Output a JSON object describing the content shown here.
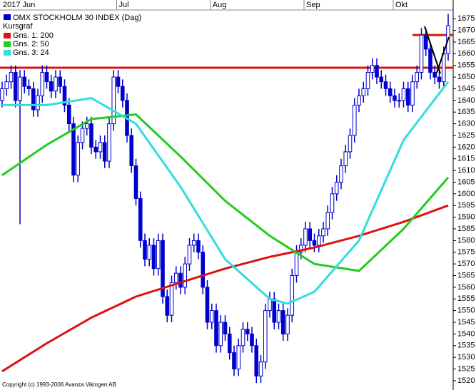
{
  "chart_data": {
    "type": "candlestick",
    "title": "OMX STOCKHOLM 30 INDEX (Dag)",
    "subtitle": "Kursgraf",
    "source": "Copyright (c) 1993-2006 Avanza Vikingen AB",
    "color": "#0000cc",
    "categories": [
      "2017 Jun",
      null,
      null,
      null,
      null,
      null,
      null,
      null,
      null,
      null,
      null,
      null,
      null,
      null,
      null,
      null,
      null,
      null,
      null,
      null,
      null,
      null,
      null,
      null,
      null,
      null,
      "Jul",
      null,
      null,
      null,
      null,
      null,
      null,
      null,
      null,
      null,
      null,
      null,
      null,
      null,
      null,
      null,
      null,
      null,
      null,
      null,
      null,
      "Aug",
      null,
      null,
      null,
      null,
      null,
      null,
      null,
      null,
      null,
      null,
      null,
      null,
      null,
      null,
      null,
      null,
      null,
      null,
      null,
      null,
      "Sep",
      null,
      null,
      null,
      null,
      null,
      null,
      null,
      null,
      null,
      null,
      null,
      null,
      null,
      null,
      null,
      null,
      null,
      null,
      null,
      "Okt",
      null,
      null,
      null,
      null,
      null,
      null,
      null,
      null,
      null,
      null,
      null,
      null
    ],
    "open": [
      1640,
      1645,
      1648,
      1652,
      1640,
      1650,
      1646,
      1645,
      1636,
      1642,
      1652,
      1648,
      1644,
      1650,
      1646,
      1638,
      1630,
      1608,
      1622,
      1628,
      1630,
      1620,
      1618,
      1622,
      1614,
      1630,
      1650,
      1646,
      1640,
      1625,
      1612,
      1598,
      1580,
      1572,
      1578,
      1568,
      1580,
      1556,
      1548,
      1562,
      1566,
      1560,
      1570,
      1578,
      1580,
      1575,
      1560,
      1545,
      1550,
      1535,
      1545,
      1540,
      1532,
      1525,
      1535,
      1542,
      1540,
      1535,
      1522,
      1528,
      1550,
      1555,
      1545,
      1550,
      1540,
      1548,
      1565,
      1575,
      1578,
      1585,
      1580,
      1578,
      1582,
      1585,
      1592,
      1600,
      1605,
      1612,
      1618,
      1625,
      1638,
      1642,
      1645,
      1652,
      1655,
      1650,
      1648,
      1645,
      1642,
      1640,
      1640,
      1645,
      1638,
      1648,
      1652,
      1668,
      1662,
      1652,
      1650,
      1648,
      1660
    ],
    "high": [
      1648,
      1651,
      1655,
      1655,
      1653,
      1653,
      1649,
      1648,
      1645,
      1655,
      1655,
      1651,
      1653,
      1653,
      1649,
      1641,
      1633,
      1625,
      1631,
      1633,
      1633,
      1623,
      1625,
      1625,
      1633,
      1653,
      1653,
      1649,
      1643,
      1628,
      1615,
      1601,
      1583,
      1581,
      1581,
      1583,
      1583,
      1559,
      1565,
      1569,
      1569,
      1573,
      1581,
      1583,
      1583,
      1578,
      1563,
      1553,
      1553,
      1548,
      1548,
      1543,
      1535,
      1538,
      1545,
      1545,
      1543,
      1538,
      1531,
      1553,
      1558,
      1558,
      1553,
      1553,
      1551,
      1568,
      1578,
      1581,
      1588,
      1588,
      1583,
      1585,
      1588,
      1595,
      1603,
      1608,
      1615,
      1621,
      1628,
      1641,
      1645,
      1648,
      1655,
      1658,
      1658,
      1653,
      1651,
      1648,
      1645,
      1643,
      1648,
      1648,
      1651,
      1655,
      1671,
      1671,
      1665,
      1655,
      1653,
      1663,
      1677
    ],
    "low": [
      1637,
      1642,
      1645,
      1637,
      1587,
      1643,
      1642,
      1633,
      1633,
      1639,
      1645,
      1641,
      1641,
      1643,
      1635,
      1627,
      1605,
      1605,
      1619,
      1625,
      1617,
      1615,
      1615,
      1611,
      1611,
      1627,
      1643,
      1637,
      1622,
      1609,
      1595,
      1577,
      1569,
      1569,
      1565,
      1565,
      1553,
      1545,
      1545,
      1559,
      1557,
      1557,
      1567,
      1575,
      1572,
      1557,
      1542,
      1542,
      1532,
      1532,
      1537,
      1529,
      1522,
      1522,
      1532,
      1537,
      1532,
      1519,
      1519,
      1525,
      1547,
      1542,
      1542,
      1537,
      1537,
      1545,
      1562,
      1572,
      1575,
      1577,
      1575,
      1575,
      1579,
      1582,
      1589,
      1597,
      1602,
      1609,
      1615,
      1622,
      1635,
      1639,
      1642,
      1649,
      1647,
      1645,
      1642,
      1639,
      1637,
      1637,
      1637,
      1635,
      1635,
      1645,
      1649,
      1659,
      1649,
      1647,
      1645,
      1645,
      1657
    ],
    "close": [
      1645,
      1648,
      1652,
      1640,
      1650,
      1646,
      1645,
      1636,
      1642,
      1652,
      1648,
      1644,
      1650,
      1646,
      1638,
      1630,
      1608,
      1622,
      1628,
      1630,
      1620,
      1618,
      1622,
      1614,
      1630,
      1650,
      1646,
      1640,
      1625,
      1612,
      1598,
      1580,
      1572,
      1578,
      1568,
      1580,
      1556,
      1548,
      1562,
      1566,
      1560,
      1570,
      1578,
      1580,
      1575,
      1560,
      1545,
      1550,
      1535,
      1545,
      1540,
      1532,
      1525,
      1535,
      1542,
      1540,
      1535,
      1522,
      1528,
      1550,
      1555,
      1545,
      1550,
      1540,
      1548,
      1565,
      1575,
      1578,
      1585,
      1580,
      1578,
      1582,
      1585,
      1592,
      1600,
      1605,
      1612,
      1618,
      1625,
      1638,
      1642,
      1645,
      1652,
      1655,
      1650,
      1648,
      1645,
      1642,
      1640,
      1640,
      1645,
      1638,
      1648,
      1652,
      1668,
      1662,
      1652,
      1650,
      1648,
      1660,
      1672
    ],
    "lines": [
      {
        "name": "Gns. 1: 200",
        "color": "#dd1111",
        "x": [
          0,
          10,
          20,
          30,
          40,
          50,
          60,
          70,
          80,
          90,
          100
        ],
        "values": [
          1524,
          1536,
          1547,
          1556,
          1562,
          1568,
          1573,
          1577,
          1582,
          1588,
          1595
        ]
      },
      {
        "name": "Gns. 2: 50",
        "color": "#22cc22",
        "x": [
          0,
          10,
          20,
          30,
          40,
          50,
          60,
          70,
          80,
          90,
          100
        ],
        "values": [
          1608,
          1621,
          1632,
          1634,
          1616,
          1597,
          1582,
          1570,
          1567,
          1585,
          1607
        ]
      },
      {
        "name": "Gns. 3: 24",
        "color": "#33dddd",
        "x": [
          0,
          10,
          20,
          30,
          40,
          50,
          60,
          64,
          70,
          80,
          90,
          100
        ],
        "values": [
          1638,
          1638,
          1641,
          1630,
          1603,
          1572,
          1555,
          1553,
          1558,
          1580,
          1623,
          1648
        ]
      }
    ],
    "levels": [
      {
        "value": 1654,
        "color": "#dd1111",
        "x": [
          0,
          100
        ]
      },
      {
        "value": 1668,
        "color": "#cc2200",
        "x": [
          92,
          100
        ]
      }
    ],
    "ylim": [
      1516,
      1683
    ],
    "yticks": [
      1520,
      1525,
      1530,
      1535,
      1540,
      1545,
      1550,
      1555,
      1560,
      1565,
      1570,
      1575,
      1580,
      1585,
      1590,
      1595,
      1600,
      1605,
      1610,
      1615,
      1620,
      1625,
      1630,
      1635,
      1640,
      1645,
      1650,
      1655,
      1660,
      1665,
      1670,
      1675
    ]
  }
}
